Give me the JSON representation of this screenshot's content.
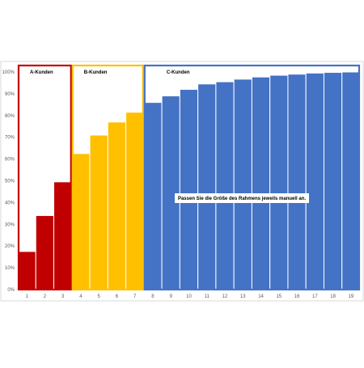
{
  "chart_data": {
    "type": "bar",
    "categories": [
      "1",
      "2",
      "3",
      "4",
      "5",
      "6",
      "7",
      "8",
      "9",
      "10",
      "11",
      "12",
      "13",
      "14",
      "15",
      "16",
      "17",
      "18",
      "19"
    ],
    "values": [
      0.175,
      0.34,
      0.495,
      0.625,
      0.71,
      0.77,
      0.815,
      0.86,
      0.89,
      0.92,
      0.945,
      0.955,
      0.967,
      0.977,
      0.985,
      0.99,
      0.995,
      0.998,
      1.0
    ],
    "ylim": [
      0,
      1
    ],
    "y_ticks": [
      "0%",
      "10%",
      "20%",
      "30%",
      "40%",
      "50%",
      "60%",
      "70%",
      "80%",
      "90%",
      "100%"
    ],
    "groups": [
      {
        "label": "A-Kunden",
        "from": 1,
        "to": 3,
        "color": "#C00000"
      },
      {
        "label": "B-Kunden",
        "from": 4,
        "to": 7,
        "color": "#FFC000"
      },
      {
        "label": "C-Kunden",
        "from": 8,
        "to": 19,
        "color": "#4472C4"
      }
    ],
    "annotation": "Passen Sie die Größe des Rahmens jeweils manuell an.",
    "grid": false,
    "legend": "none"
  }
}
